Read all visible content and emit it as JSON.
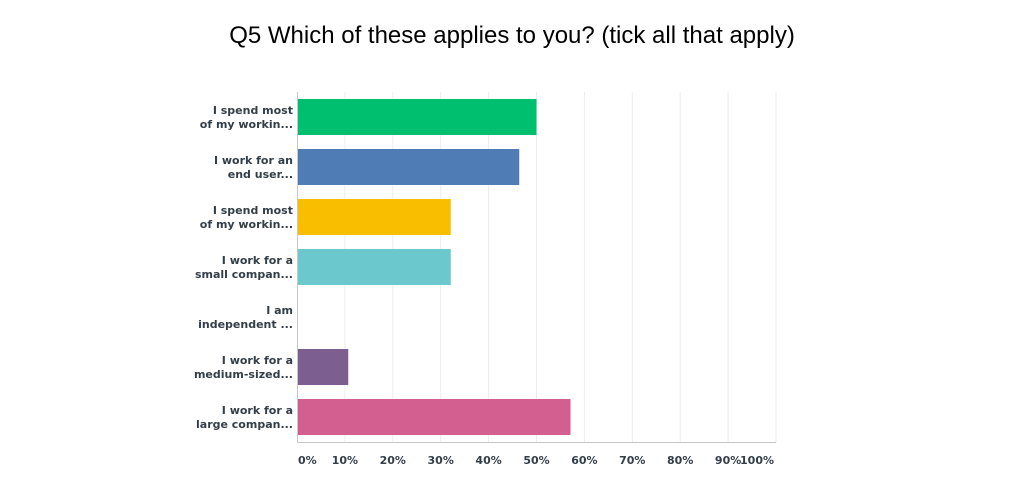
{
  "chart_data": {
    "type": "bar",
    "orientation": "horizontal",
    "title": "Q5 Which of these applies to you? (tick all that apply)",
    "categories": [
      [
        "I spend most",
        "of my workin..."
      ],
      [
        "I work for an",
        "end user..."
      ],
      [
        "I spend most",
        "of my workin..."
      ],
      [
        "I work for a",
        "small compan..."
      ],
      [
        "I am",
        "independent ..."
      ],
      [
        "I work for a",
        "medium-sized..."
      ],
      [
        "I work for a",
        "large compan..."
      ]
    ],
    "values": [
      50,
      46.4,
      32.1,
      32.1,
      0,
      10.7,
      57.1
    ],
    "colors": [
      "#00bf6f",
      "#507cb6",
      "#f9be00",
      "#6bc8cd",
      "#ff8b4f",
      "#7d5e90",
      "#d25f90"
    ],
    "xlim": [
      0,
      100
    ],
    "xticks": [
      "0%",
      "10%",
      "20%",
      "30%",
      "40%",
      "50%",
      "60%",
      "70%",
      "80%",
      "90%",
      "100%"
    ],
    "grid": true,
    "xlabel": "",
    "ylabel": ""
  }
}
